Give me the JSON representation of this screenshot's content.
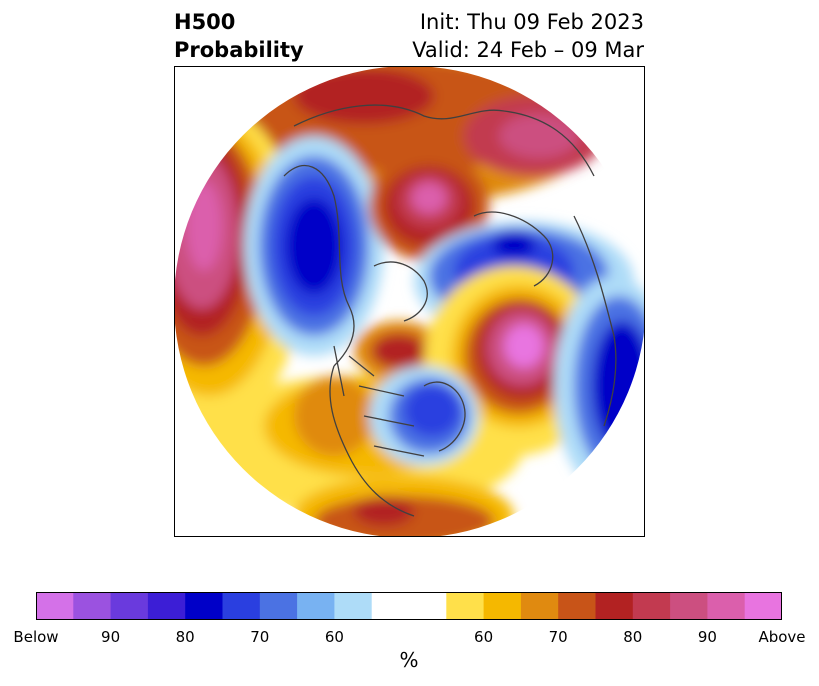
{
  "title": {
    "left_line1": "H500",
    "left_line2": "Probability",
    "right_line1": "Init: Thu 09 Feb 2023",
    "right_line2": "Valid: 24 Feb – 09 Mar"
  },
  "colorbar": {
    "colors": [
      "#d471e8",
      "#9b52e0",
      "#6a3add",
      "#3c1ed6",
      "#0000c8",
      "#2a3fe0",
      "#4b72e3",
      "#78b2f2",
      "#aedcf8",
      "#ffffff",
      "#ffe04a",
      "#f5b800",
      "#e08a10",
      "#c85418",
      "#b22222",
      "#c23a50",
      "#cc4f80",
      "#db5fac",
      "#e874e0"
    ],
    "tick_labels": [
      "Below",
      "90",
      "80",
      "70",
      "60",
      "60",
      "70",
      "80",
      "90",
      "Above"
    ],
    "units": "%"
  },
  "colors": {
    "above_strong": "#db5fac",
    "above_red": "#b22222",
    "above_orange": "#c85418",
    "above_yellow": "#ffe04a",
    "below_strong": "#0000c8",
    "below_light": "#aedcf8",
    "land_outline": "#404040"
  }
}
